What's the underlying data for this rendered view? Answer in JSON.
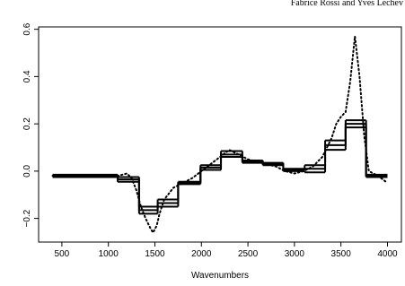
{
  "header": "Fabrice Rossi and Yves Lechev",
  "chart_data": {
    "type": "line",
    "xlabel": "Wavenumbers",
    "xlim": [
      250,
      4150
    ],
    "xticks": [
      500,
      1000,
      1500,
      2000,
      2500,
      3000,
      3500,
      4000
    ],
    "ylim": [
      -0.3,
      0.61
    ],
    "yticks": [
      {
        "value": -0.2,
        "label": "−0.2"
      },
      {
        "value": 0,
        "label": "0.0"
      },
      0.2,
      0.4,
      0.6
    ],
    "color": "#000000",
    "series": [
      {
        "style": "dotted",
        "x": [
          400,
          800,
          1000,
          1100,
          1200,
          1250,
          1300,
          1350,
          1400,
          1450,
          1480,
          1520,
          1550,
          1600,
          1700,
          1800,
          1900,
          2000,
          2100,
          2200,
          2300,
          2400,
          2500,
          2600,
          2700,
          2800,
          2900,
          3000,
          3100,
          3200,
          3300,
          3400,
          3450,
          3500,
          3550,
          3600,
          3650,
          3700,
          3750,
          3800,
          3900,
          4000
        ],
        "values": [
          -0.02,
          -0.02,
          -0.02,
          -0.02,
          -0.01,
          -0.03,
          -0.08,
          -0.15,
          -0.2,
          -0.24,
          -0.26,
          -0.23,
          -0.18,
          -0.12,
          -0.07,
          -0.05,
          -0.03,
          0.0,
          0.03,
          0.06,
          0.09,
          0.07,
          0.05,
          0.04,
          0.03,
          0.02,
          0.0,
          -0.01,
          0.0,
          0.02,
          0.06,
          0.14,
          0.2,
          0.23,
          0.25,
          0.38,
          0.57,
          0.4,
          0.15,
          0.0,
          -0.02,
          -0.05
        ]
      },
      {
        "style": "step",
        "bins": [
          400,
          1100,
          1330,
          1530,
          1750,
          1990,
          2210,
          2440,
          2660,
          2880,
          3110,
          3330,
          3550,
          3770,
          4000
        ],
        "values": [
          -0.015,
          -0.025,
          -0.15,
          -0.12,
          -0.045,
          0.025,
          0.085,
          0.045,
          0.035,
          0.01,
          0.025,
          0.13,
          0.215,
          -0.015
        ]
      },
      {
        "style": "step",
        "bins": [
          400,
          1100,
          1330,
          1530,
          1750,
          1990,
          2210,
          2440,
          2660,
          2880,
          3110,
          3330,
          3550,
          3770,
          4000
        ],
        "values": [
          -0.02,
          -0.035,
          -0.165,
          -0.135,
          -0.05,
          0.015,
          0.07,
          0.04,
          0.03,
          0.005,
          0.01,
          0.11,
          0.2,
          -0.02
        ]
      },
      {
        "style": "step",
        "bins": [
          400,
          1100,
          1330,
          1530,
          1750,
          1990,
          2210,
          2440,
          2660,
          2880,
          3110,
          3330,
          3550,
          3770,
          4000
        ],
        "values": [
          -0.025,
          -0.045,
          -0.18,
          -0.15,
          -0.055,
          0.005,
          0.06,
          0.035,
          0.025,
          0.0,
          -0.005,
          0.09,
          0.185,
          -0.025
        ]
      }
    ]
  }
}
